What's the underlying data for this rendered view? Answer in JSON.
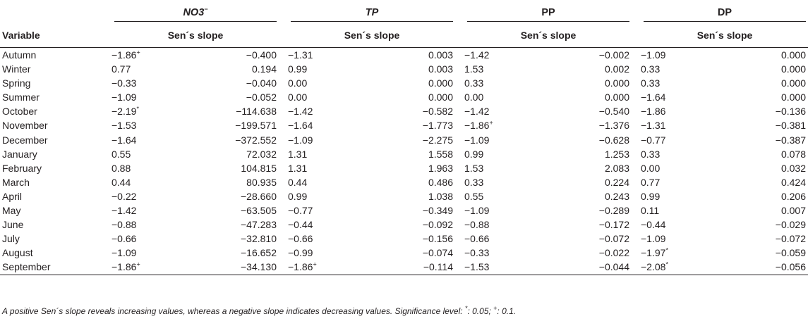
{
  "header": {
    "variable_label": "Variable",
    "groups": [
      {
        "label": "NO3",
        "sup": "−",
        "italic": true,
        "sub_label": "Sen´s slope"
      },
      {
        "label": "TP",
        "sup": "",
        "italic": true,
        "sub_label": "Sen´s slope"
      },
      {
        "label": "PP",
        "sup": "",
        "italic": false,
        "sub_label": "Sen´s slope"
      },
      {
        "label": "DP",
        "sup": "",
        "italic": false,
        "sub_label": "Sen´s slope"
      }
    ]
  },
  "rows": [
    {
      "label": "Autumn",
      "cells": [
        [
          "−1.86",
          "+"
        ],
        [
          "−0.400",
          ""
        ],
        [
          "−1.31",
          ""
        ],
        [
          "0.003",
          ""
        ],
        [
          "−1.42",
          ""
        ],
        [
          "−0.002",
          ""
        ],
        [
          "−1.09",
          ""
        ],
        [
          "0.000",
          ""
        ]
      ]
    },
    {
      "label": "Winter",
      "cells": [
        [
          "0.77",
          ""
        ],
        [
          "0.194",
          ""
        ],
        [
          "0.99",
          ""
        ],
        [
          "0.003",
          ""
        ],
        [
          "1.53",
          ""
        ],
        [
          "0.002",
          ""
        ],
        [
          "0.33",
          ""
        ],
        [
          "0.000",
          ""
        ]
      ]
    },
    {
      "label": "Spring",
      "cells": [
        [
          "−0.33",
          ""
        ],
        [
          "−0.040",
          ""
        ],
        [
          "0.00",
          ""
        ],
        [
          "0.000",
          ""
        ],
        [
          "0.33",
          ""
        ],
        [
          "0.000",
          ""
        ],
        [
          "0.33",
          ""
        ],
        [
          "0.000",
          ""
        ]
      ]
    },
    {
      "label": "Summer",
      "cells": [
        [
          "−1.09",
          ""
        ],
        [
          "−0.052",
          ""
        ],
        [
          "0.00",
          ""
        ],
        [
          "0.000",
          ""
        ],
        [
          "0.00",
          ""
        ],
        [
          "0.000",
          ""
        ],
        [
          "−1.64",
          ""
        ],
        [
          "0.000",
          ""
        ]
      ]
    },
    {
      "label": "October",
      "cells": [
        [
          "−2.19",
          "*"
        ],
        [
          "−114.638",
          ""
        ],
        [
          "−1.42",
          ""
        ],
        [
          "−0.582",
          ""
        ],
        [
          "−1.42",
          ""
        ],
        [
          "−0.540",
          ""
        ],
        [
          "−1.86",
          ""
        ],
        [
          "−0.136",
          ""
        ]
      ]
    },
    {
      "label": "November",
      "cells": [
        [
          "−1.53",
          ""
        ],
        [
          "−199.571",
          ""
        ],
        [
          "−1.64",
          ""
        ],
        [
          "−1.773",
          ""
        ],
        [
          "−1.86",
          "+"
        ],
        [
          "−1.376",
          ""
        ],
        [
          "−1.31",
          ""
        ],
        [
          "−0.381",
          ""
        ]
      ]
    },
    {
      "label": "December",
      "cells": [
        [
          "−1.64",
          ""
        ],
        [
          "−372.552",
          ""
        ],
        [
          "−1.09",
          ""
        ],
        [
          "−2.275",
          ""
        ],
        [
          "−1.09",
          ""
        ],
        [
          "−0.628",
          ""
        ],
        [
          "−0.77",
          ""
        ],
        [
          "−0.387",
          ""
        ]
      ]
    },
    {
      "label": "January",
      "cells": [
        [
          "0.55",
          ""
        ],
        [
          "72.032",
          ""
        ],
        [
          "1.31",
          ""
        ],
        [
          "1.558",
          ""
        ],
        [
          "0.99",
          ""
        ],
        [
          "1.253",
          ""
        ],
        [
          "0.33",
          ""
        ],
        [
          "0.078",
          ""
        ]
      ]
    },
    {
      "label": "February",
      "cells": [
        [
          "0.88",
          ""
        ],
        [
          "104.815",
          ""
        ],
        [
          "1.31",
          ""
        ],
        [
          "1.963",
          ""
        ],
        [
          "1.53",
          ""
        ],
        [
          "2.083",
          ""
        ],
        [
          "0.00",
          ""
        ],
        [
          "0.032",
          ""
        ]
      ]
    },
    {
      "label": "March",
      "cells": [
        [
          "0.44",
          ""
        ],
        [
          "80.935",
          ""
        ],
        [
          "0.44",
          ""
        ],
        [
          "0.486",
          ""
        ],
        [
          "0.33",
          ""
        ],
        [
          "0.224",
          ""
        ],
        [
          "0.77",
          ""
        ],
        [
          "0.424",
          ""
        ]
      ]
    },
    {
      "label": "April",
      "cells": [
        [
          "−0.22",
          ""
        ],
        [
          "−28.660",
          ""
        ],
        [
          "0.99",
          ""
        ],
        [
          "1.038",
          ""
        ],
        [
          "0.55",
          ""
        ],
        [
          "0.243",
          ""
        ],
        [
          "0.99",
          ""
        ],
        [
          "0.206",
          ""
        ]
      ]
    },
    {
      "label": "May",
      "cells": [
        [
          "−1.42",
          ""
        ],
        [
          "−63.505",
          ""
        ],
        [
          "−0.77",
          ""
        ],
        [
          "−0.349",
          ""
        ],
        [
          "−1.09",
          ""
        ],
        [
          "−0.289",
          ""
        ],
        [
          "0.11",
          ""
        ],
        [
          "0.007",
          ""
        ]
      ]
    },
    {
      "label": "June",
      "cells": [
        [
          "−0.88",
          ""
        ],
        [
          "−47.283",
          ""
        ],
        [
          "−0.44",
          ""
        ],
        [
          "−0.092",
          ""
        ],
        [
          "−0.88",
          ""
        ],
        [
          "−0.172",
          ""
        ],
        [
          "−0.44",
          ""
        ],
        [
          "−0.029",
          ""
        ]
      ]
    },
    {
      "label": "July",
      "cells": [
        [
          "−0.66",
          ""
        ],
        [
          "−32.810",
          ""
        ],
        [
          "−0.66",
          ""
        ],
        [
          "−0.156",
          ""
        ],
        [
          "−0.66",
          ""
        ],
        [
          "−0.072",
          ""
        ],
        [
          "−1.09",
          ""
        ],
        [
          "−0.072",
          ""
        ]
      ]
    },
    {
      "label": "August",
      "cells": [
        [
          "−1.09",
          ""
        ],
        [
          "−16.652",
          ""
        ],
        [
          "−0.99",
          ""
        ],
        [
          "−0.074",
          ""
        ],
        [
          "−0.33",
          ""
        ],
        [
          "−0.022",
          ""
        ],
        [
          "−1.97",
          "*"
        ],
        [
          "−0.059",
          ""
        ]
      ]
    },
    {
      "label": "September",
      "cells": [
        [
          "−1.86",
          "+"
        ],
        [
          "−34.130",
          ""
        ],
        [
          "−1.86",
          "+"
        ],
        [
          "−0.114",
          ""
        ],
        [
          "−1.53",
          ""
        ],
        [
          "−0.044",
          ""
        ],
        [
          "−2.08",
          "*"
        ],
        [
          "−0.056",
          ""
        ]
      ]
    }
  ],
  "footnote": {
    "text": "A positive Sen´s slope reveals increasing values, whereas a negative slope indicates decreasing values. Significance level: ",
    "star_sup": "*",
    "star_text": ": 0.05; ",
    "plus_sup": "+",
    "plus_text": ": 0.1."
  }
}
